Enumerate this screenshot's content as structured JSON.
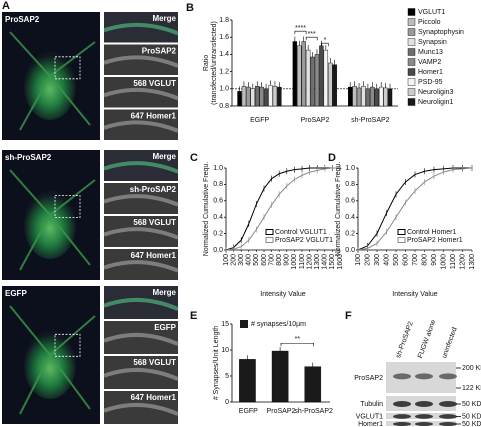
{
  "panel_letters": [
    "A",
    "B",
    "C",
    "D",
    "E",
    "F"
  ],
  "panel_a": {
    "rows": [
      {
        "label": "ProSAP2",
        "insets": [
          "Merge",
          "ProSAP2",
          "568 VGLUT",
          "647 Homer1"
        ]
      },
      {
        "label": "sh-ProSAP2",
        "insets": [
          "Merge",
          "sh-ProSAP2",
          "568 VGLUT",
          "647 Homer1"
        ]
      },
      {
        "label": "EGFP",
        "insets": [
          "Merge",
          "EGFP",
          "568 VGLUT",
          "647 Homer1"
        ]
      }
    ]
  },
  "chart_data": [
    {
      "type": "bar",
      "categories": [
        "EGFP",
        "ProSAP2",
        "sh-ProSAP2"
      ],
      "series": [
        {
          "name": "VGLUT1",
          "color": "#000000",
          "values": [
            0.97,
            1.55,
            1.02
          ]
        },
        {
          "name": "Piccolo",
          "color": "#bdbdbd",
          "values": [
            1.03,
            1.5,
            1.03
          ]
        },
        {
          "name": "Synaptophysin",
          "color": "#9a9a9a",
          "values": [
            1.02,
            1.55,
            1.01
          ]
        },
        {
          "name": "Synapsin",
          "color": "#e2e2e2",
          "values": [
            1.0,
            1.45,
            1.03
          ]
        },
        {
          "name": "Munc13",
          "color": "#6e6e6e",
          "values": [
            1.03,
            1.37,
            1.0
          ]
        },
        {
          "name": "VAMP2",
          "color": "#8a8a8a",
          "values": [
            1.02,
            1.4,
            1.02
          ]
        },
        {
          "name": "Homer1",
          "color": "#4a4a4a",
          "values": [
            1.0,
            1.5,
            1.0
          ]
        },
        {
          "name": "PSD-95",
          "color": "#f4f4f4",
          "values": [
            1.04,
            1.45,
            1.02
          ]
        },
        {
          "name": "Neuroligin3",
          "color": "#cccccc",
          "values": [
            1.03,
            1.3,
            1.01
          ]
        },
        {
          "name": "Neuroligin1",
          "color": "#1a1a1a",
          "values": [
            1.02,
            1.28,
            1.0
          ]
        }
      ],
      "ylim": [
        0.8,
        1.8
      ],
      "yticks": [
        0.8,
        {
          "value": 1,
          "label": "1.0"
        },
        1.2,
        1.4,
        1.6,
        1.8
      ],
      "ylabel": [
        "Ratio",
        "(transfected/untransfected)"
      ],
      "annotations": [
        "****",
        "***",
        "*"
      ]
    },
    {
      "type": "line",
      "x": [
        100,
        200,
        300,
        400,
        500,
        600,
        700,
        800,
        900,
        1000,
        1100,
        1200,
        1300,
        1400,
        1500,
        1600
      ],
      "xlim": [
        100,
        1600
      ],
      "xticks": [
        100,
        200,
        300,
        400,
        500,
        600,
        700,
        800,
        900,
        1000,
        1100,
        1200,
        1300,
        1400,
        1500,
        1600
      ],
      "ylim": [
        0,
        1
      ],
      "yticks": [
        {
          "value": 0,
          "label": "0.0"
        },
        0.2,
        0.4,
        0.6,
        0.8,
        {
          "value": 1,
          "label": "1.0"
        }
      ],
      "xlabel": "Intensity Value",
      "ylabel": "Normalized Cumulative Frequ.",
      "series": [
        {
          "name": "Control VGLUT1",
          "color": "#000000",
          "values": [
            0,
            0.03,
            0.12,
            0.32,
            0.56,
            0.75,
            0.87,
            0.93,
            0.96,
            0.98,
            0.99,
            1,
            1,
            1,
            1,
            1
          ]
        },
        {
          "name": "ProSAP2 VGLUT1",
          "color": "#8a8a8a",
          "values": [
            0,
            0.01,
            0.04,
            0.12,
            0.25,
            0.4,
            0.55,
            0.68,
            0.78,
            0.86,
            0.91,
            0.95,
            0.97,
            0.99,
            1,
            1
          ]
        }
      ]
    },
    {
      "type": "line",
      "x": [
        100,
        200,
        300,
        400,
        500,
        600,
        700,
        800,
        900,
        1000,
        1100,
        1200,
        1300
      ],
      "xlim": [
        100,
        1300
      ],
      "xticks": [
        100,
        200,
        300,
        400,
        500,
        600,
        700,
        800,
        900,
        1000,
        1100,
        1200,
        1300
      ],
      "ylim": [
        0,
        1
      ],
      "yticks": [
        {
          "value": 0,
          "label": "0.0"
        },
        0.2,
        0.4,
        0.6,
        0.8,
        {
          "value": 1,
          "label": "1.0"
        }
      ],
      "xlabel": "Intensity Value",
      "ylabel": "Normalized Cumulative Frequ.",
      "series": [
        {
          "name": "Control Homer1",
          "color": "#000000",
          "values": [
            0,
            0.05,
            0.2,
            0.45,
            0.68,
            0.83,
            0.92,
            0.96,
            0.98,
            0.99,
            1,
            1,
            1
          ]
        },
        {
          "name": "ProSAP2 Homer1",
          "color": "#8a8a8a",
          "values": [
            0,
            0.02,
            0.08,
            0.22,
            0.4,
            0.58,
            0.72,
            0.83,
            0.9,
            0.95,
            0.98,
            0.99,
            1
          ]
        }
      ]
    },
    {
      "type": "bar",
      "categories": [
        "EGFP",
        "ProSAP2",
        "sh-ProSAP2"
      ],
      "series": [
        {
          "name": "# synapses/10µm",
          "color": "#1a1a1a",
          "values": [
            8.2,
            9.8,
            6.8
          ]
        }
      ],
      "ylim": [
        0,
        15
      ],
      "yticks": [
        0,
        5,
        10,
        15
      ],
      "ylabel": "# Synapses/Unit Length",
      "annotations": [
        "**"
      ]
    }
  ],
  "panel_f": {
    "lanes": [
      "sh-ProSAP2",
      "FUGW alone",
      "uninfected"
    ],
    "rows": [
      {
        "label": "ProSAP2",
        "markers": [
          "200 KD",
          "122 KD"
        ]
      },
      {
        "label": "Tubulin",
        "markers": [
          "50 KD"
        ]
      },
      {
        "label": "VGLUT1",
        "markers": [
          "50 KD"
        ]
      },
      {
        "label": "Homer1",
        "markers": [
          "50 KD"
        ]
      }
    ]
  }
}
